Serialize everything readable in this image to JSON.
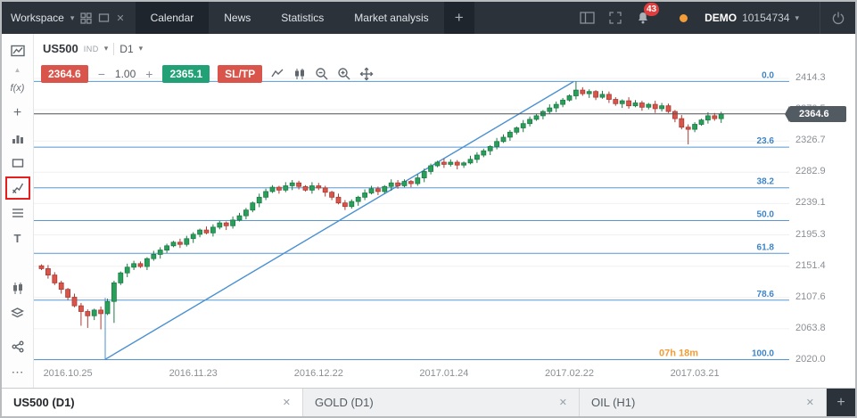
{
  "ui": {
    "caret": "▾",
    "close_glyph": "✕"
  },
  "topbar": {
    "workspace_label": "Workspace",
    "tabs": [
      {
        "label": "Calendar",
        "active": true
      },
      {
        "label": "News",
        "active": false
      },
      {
        "label": "Statistics",
        "active": false
      },
      {
        "label": "Market analysis",
        "active": false
      }
    ],
    "add_tab_label": "+",
    "notifications_count": "43",
    "account_mode": "DEMO",
    "account_number": "10154734"
  },
  "sidebar": {
    "tools": [
      "chart-window",
      "scroll-up",
      "function",
      "add",
      "indicators",
      "shapes",
      "trendline",
      "fibonacci",
      "text",
      "chart-type-candles",
      "layers",
      "share",
      "more"
    ],
    "highlighted_tool": "trendline",
    "glyphs": {
      "fx": "f(x)",
      "plus": "+",
      "text": "T",
      "more": "⋯"
    }
  },
  "chart": {
    "symbol": "US500",
    "instrument_type": "IND",
    "timeframe": "D1",
    "sell_price": "2364.6",
    "volume": "1.00",
    "volume_minus": "−",
    "volume_plus": "+",
    "buy_price": "2365.1",
    "sltp_label": "SL/TP"
  },
  "chart_data": {
    "type": "candlestick",
    "title": "US500 D1",
    "x_labels": [
      "2016.10.25",
      "2016.11.23",
      "2016.12.22",
      "2017.01.24",
      "2017.02.22",
      "2017.03.21"
    ],
    "x_label_indices": [
      4,
      23,
      42,
      61,
      80,
      99
    ],
    "y_axis_labels": [
      2414.3,
      2370.5,
      2326.7,
      2282.9,
      2239.1,
      2195.3,
      2151.4,
      2107.6,
      2063.8,
      2020.0
    ],
    "y_range": [
      2020.0,
      2414.3
    ],
    "start_open": 2152,
    "closes": [
      2148,
      2139,
      2128,
      2119,
      2108,
      2096,
      2088,
      2082,
      2090,
      2085,
      2102,
      2128,
      2142,
      2150,
      2155,
      2151,
      2162,
      2168,
      2174,
      2180,
      2185,
      2182,
      2190,
      2196,
      2202,
      2198,
      2206,
      2212,
      2208,
      2216,
      2222,
      2230,
      2240,
      2248,
      2256,
      2262,
      2258,
      2264,
      2268,
      2263,
      2258,
      2264,
      2261,
      2255,
      2248,
      2240,
      2235,
      2242,
      2248,
      2254,
      2260,
      2256,
      2263,
      2268,
      2264,
      2270,
      2267,
      2275,
      2284,
      2292,
      2297,
      2294,
      2297,
      2293,
      2296,
      2301,
      2307,
      2313,
      2319,
      2326,
      2332,
      2339,
      2345,
      2351,
      2357,
      2362,
      2368,
      2373,
      2378,
      2384,
      2390,
      2398,
      2393,
      2396,
      2388,
      2392,
      2385,
      2379,
      2383,
      2376,
      2380,
      2374,
      2378,
      2372,
      2376,
      2368,
      2358,
      2346,
      2343,
      2350,
      2356,
      2362,
      2358,
      2364.6
    ],
    "wick_overrides": {
      "6": {
        "low": 2068
      },
      "7": {
        "low": 2065
      },
      "9": {
        "low": 2063
      },
      "11": {
        "low": 2072
      },
      "81": {
        "high": 2410
      },
      "98": {
        "low": 2322
      }
    },
    "current_price": "2364.6",
    "candle_countdown": "07h 18m",
    "fibonacci": {
      "levels": [
        {
          "label": "0.0",
          "price": 2410.0
        },
        {
          "label": "23.6",
          "price": 2318.1
        },
        {
          "label": "38.2",
          "price": 2261.2
        },
        {
          "label": "50.0",
          "price": 2215.3
        },
        {
          "label": "61.8",
          "price": 2169.4
        },
        {
          "label": "78.6",
          "price": 2103.9
        },
        {
          "label": "100.0",
          "price": 2020.6
        }
      ]
    },
    "trendline": {
      "from_index": 10,
      "from_price": 2021,
      "to_index": 81,
      "to_price": 2410
    },
    "anchor_line": {
      "index": 10,
      "price_top": 2107,
      "price_bottom": 2021
    },
    "colors": {
      "up": "#28a05c",
      "up_border": "#1e7a45",
      "down": "#d9544a",
      "down_border": "#a93c34",
      "fib": "#3d85c8",
      "trend": "#4a90d2",
      "price_line": "#4a5158",
      "grid": "#f0f0f1",
      "countdown": "#f29d38",
      "axis_text": "#8b8f94"
    }
  },
  "bottom_bar": {
    "tabs": [
      {
        "label": "US500 (D1)",
        "active": true
      },
      {
        "label": "GOLD (D1)",
        "active": false
      },
      {
        "label": "OIL (H1)",
        "active": false
      }
    ],
    "corner_glyph": "+"
  }
}
